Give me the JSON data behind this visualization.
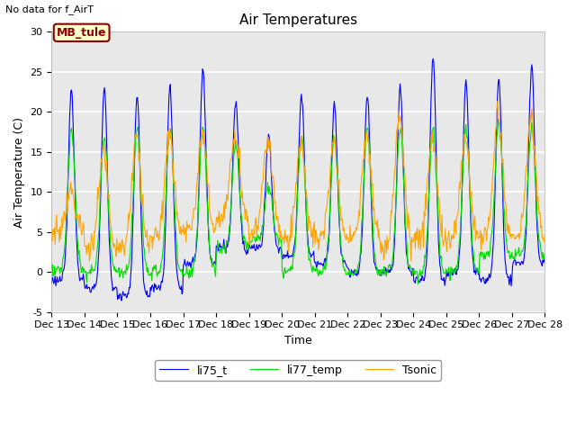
{
  "title": "Air Temperatures",
  "xlabel": "Time",
  "ylabel": "Air Temperature (C)",
  "top_left_text": "No data for f_AirT",
  "annotation_text": "MB_tule",
  "ylim": [
    -5,
    30
  ],
  "xlim": [
    13,
    28
  ],
  "yticks": [
    -5,
    0,
    5,
    10,
    15,
    20,
    25,
    30
  ],
  "xtick_labels": [
    "Dec 13",
    "Dec 14",
    "Dec 15",
    "Dec 16",
    "Dec 17",
    "Dec 18",
    "Dec 19",
    "Dec 20",
    "Dec 21",
    "Dec 22",
    "Dec 23",
    "Dec 24",
    "Dec 25",
    "Dec 26",
    "Dec 27",
    "Dec 28"
  ],
  "bg_color": "#ffffff",
  "plot_bg_color": "#e8e8e8",
  "line_li75_t": {
    "color": "#0000ff",
    "label": "li75_t",
    "lw": 0.8
  },
  "line_li77_temp": {
    "color": "#00dd00",
    "label": "li77_temp",
    "lw": 0.8
  },
  "line_Tsonic": {
    "color": "#ffa500",
    "label": "Tsonic",
    "lw": 0.8
  },
  "title_fontsize": 11,
  "label_fontsize": 9,
  "tick_fontsize": 8
}
